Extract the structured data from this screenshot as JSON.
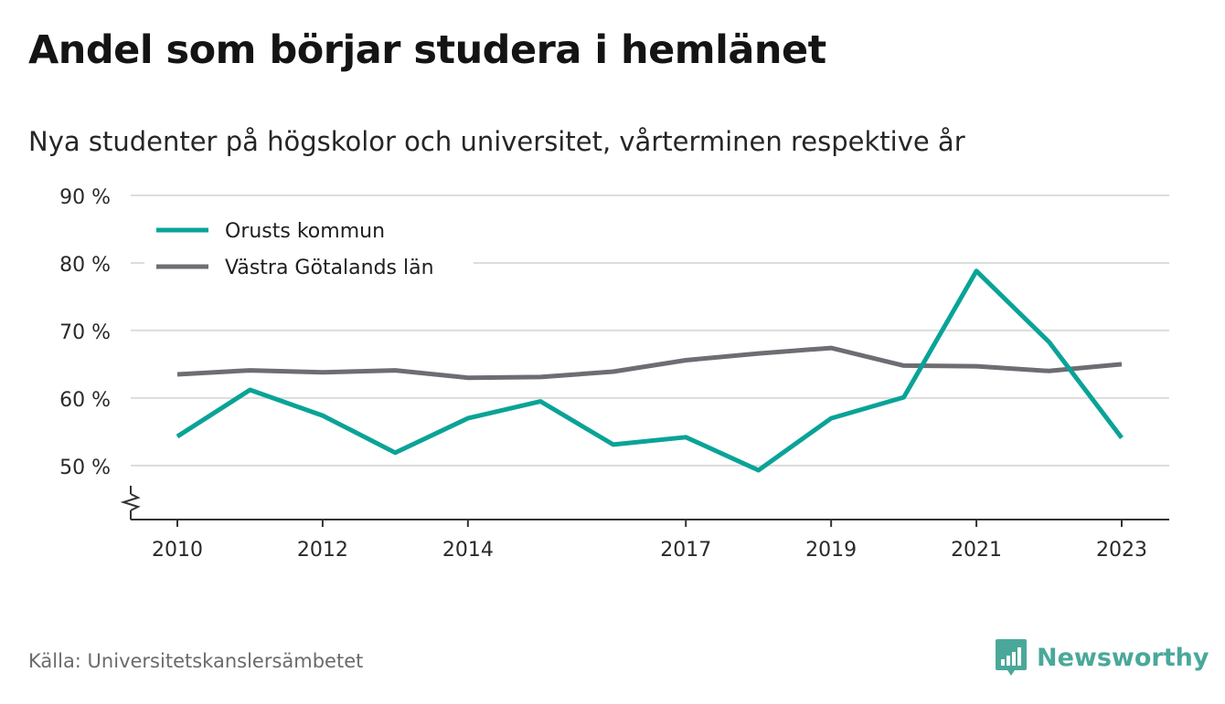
{
  "header": {
    "title": "Andel som börjar studera i hemlänet",
    "subtitle": "Nya studenter på högskolor och universitet, vårterminen respektive år"
  },
  "footer": {
    "source": "Källa: Universitetskanslersämbetet",
    "brand": "Newsworthy"
  },
  "colors": {
    "series_1": "#0aa397",
    "series_2": "#6e6d73",
    "grid": "#dcdcdc",
    "axis": "#333333",
    "brand": "#4aa89a"
  },
  "chart_data": {
    "type": "line",
    "x": [
      2010,
      2011,
      2012,
      2013,
      2014,
      2015,
      2016,
      2017,
      2018,
      2019,
      2020,
      2021,
      2022,
      2023
    ],
    "x_tick_labels": [
      "2010",
      "2012",
      "2014",
      "2017",
      "2019",
      "2021",
      "2023"
    ],
    "y_tick_labels": [
      "50 %",
      "60 %",
      "70 %",
      "80 %",
      "90 %"
    ],
    "ylim": [
      42,
      90
    ],
    "y_ticks": [
      50,
      60,
      70,
      80,
      90
    ],
    "y_axis_break": true,
    "grid": "horizontal",
    "legend_position": "top-left",
    "series": [
      {
        "name": "Orusts kommun",
        "color": "#0aa397",
        "values": [
          54.3,
          61.2,
          57.4,
          51.9,
          57.0,
          59.5,
          53.1,
          54.2,
          49.3,
          57.0,
          60.1,
          78.8,
          68.3,
          54.1
        ]
      },
      {
        "name": "Västra Götalands län",
        "color": "#6e6d73",
        "values": [
          63.5,
          64.1,
          63.8,
          64.1,
          63.0,
          63.1,
          63.9,
          65.6,
          66.6,
          67.4,
          64.8,
          64.7,
          64.0,
          65.0
        ]
      }
    ]
  }
}
